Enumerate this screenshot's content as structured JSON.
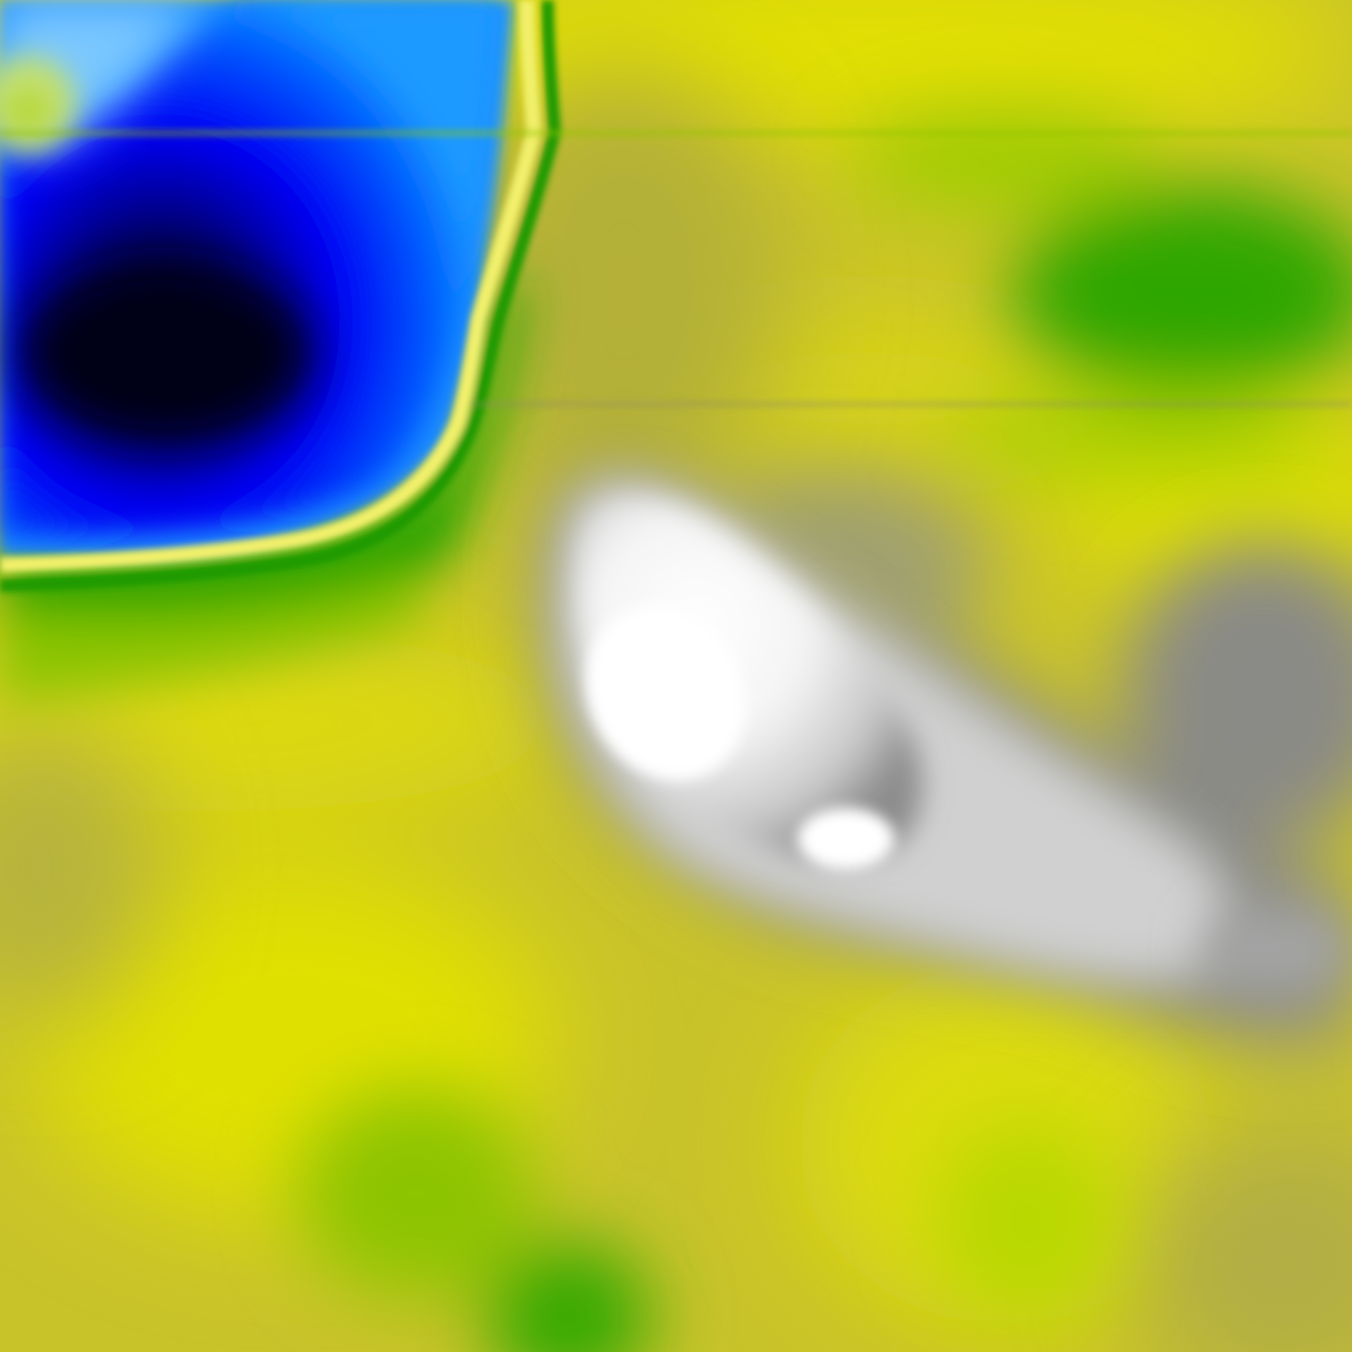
{
  "raster": {
    "kind": "elevation-colormap",
    "palette": {
      "deep": "#000033",
      "low": "#0000ff",
      "mid_low": "#0066ff",
      "shore": "#f0f060",
      "green": "#22a300",
      "yellow_green": "#b8d400",
      "yellow": "#e0e000",
      "olive": "#c8c028",
      "grey": "#8a8a8a",
      "white": "#ffffff"
    },
    "regions": [
      {
        "name": "blue-basin",
        "color": "#0000ff"
      },
      {
        "name": "green-band",
        "color": "#22a300"
      },
      {
        "name": "yellow-plain",
        "color": "#e0e000"
      },
      {
        "name": "white-ridge",
        "color": "#ffffff"
      },
      {
        "name": "grey-slope",
        "color": "#8a8a8a"
      }
    ]
  }
}
